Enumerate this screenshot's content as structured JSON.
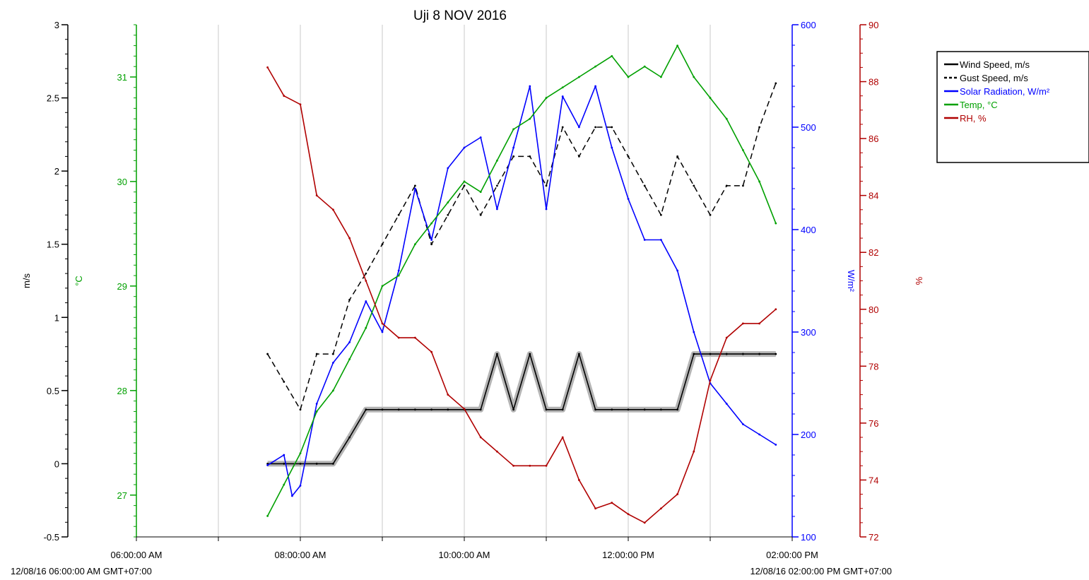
{
  "chart_data": {
    "type": "line",
    "title": "Uji 8 NOV 2016",
    "x_tick_labels": [
      "06:00:00 AM",
      "08:00:00 AM",
      "10:00:00 AM",
      "12:00:00 PM",
      "02:00:00 PM"
    ],
    "x_range_labels": {
      "start": "12/08/16 06:00:00 AM GMT+07:00",
      "end": "12/08/16 02:00:00 PM GMT+07:00"
    },
    "x_range_hours": [
      6,
      14
    ],
    "grid": true,
    "legend_position": "top-right",
    "axes": [
      {
        "id": "wind",
        "label": "m/s",
        "color": "#000000",
        "range": [
          -0.5,
          3
        ],
        "ticks": [
          "-0.5",
          "0",
          "0.5",
          "1",
          "1.5",
          "2",
          "2.5",
          "3"
        ]
      },
      {
        "id": "temp",
        "label": "°C",
        "color": "#00a000",
        "range": [
          26.6,
          31.5
        ],
        "ticks": [
          "27",
          "28",
          "29",
          "30",
          "31"
        ]
      },
      {
        "id": "solar",
        "label": "W/m²",
        "color": "#0000ff",
        "range": [
          100,
          600
        ],
        "ticks": [
          "100",
          "200",
          "300",
          "400",
          "500",
          "600"
        ]
      },
      {
        "id": "rh",
        "label": "%",
        "color": "#b00000",
        "range": [
          72,
          90
        ],
        "ticks": [
          "72",
          "74",
          "76",
          "78",
          "80",
          "82",
          "84",
          "86",
          "88",
          "90"
        ]
      }
    ],
    "series": [
      {
        "name": "Wind Speed, m/s",
        "axis": "wind",
        "color": "#000000",
        "style": "solid",
        "x_hours": [
          7.6,
          7.8,
          8.0,
          8.2,
          8.4,
          8.6,
          8.8,
          9.0,
          9.2,
          9.4,
          9.6,
          9.8,
          10.0,
          10.2,
          10.4,
          10.6,
          10.8,
          11.0,
          11.2,
          11.4,
          11.6,
          11.8,
          12.0,
          12.2,
          12.4,
          12.6,
          12.8,
          13.0,
          13.2,
          13.4,
          13.6,
          13.8
        ],
        "values": [
          0,
          0,
          0,
          0,
          0,
          0.18,
          0.37,
          0.37,
          0.37,
          0.37,
          0.37,
          0.37,
          0.37,
          0.37,
          0.75,
          0.37,
          0.75,
          0.37,
          0.37,
          0.75,
          0.37,
          0.37,
          0.37,
          0.37,
          0.37,
          0.37,
          0.75,
          0.75,
          0.75,
          0.75,
          0.75,
          0.75
        ]
      },
      {
        "name": "Gust Speed, m/s",
        "axis": "wind",
        "color": "#000000",
        "style": "dashed",
        "x_hours": [
          7.6,
          7.8,
          8.0,
          8.2,
          8.4,
          8.6,
          8.8,
          9.0,
          9.2,
          9.4,
          9.6,
          9.8,
          10.0,
          10.2,
          10.4,
          10.6,
          10.8,
          11.0,
          11.2,
          11.4,
          11.6,
          11.8,
          12.0,
          12.2,
          12.4,
          12.6,
          12.8,
          13.0,
          13.2,
          13.4,
          13.6,
          13.8
        ],
        "values": [
          0.75,
          0.56,
          0.37,
          0.75,
          0.75,
          1.12,
          1.3,
          1.5,
          1.7,
          1.9,
          1.5,
          1.7,
          1.9,
          1.7,
          1.9,
          2.1,
          2.1,
          1.9,
          2.3,
          2.1,
          2.3,
          2.3,
          2.1,
          1.9,
          1.7,
          2.1,
          1.9,
          1.7,
          1.9,
          1.9,
          2.3,
          2.6
        ]
      },
      {
        "name": "Solar Radiation, W/m²",
        "axis": "solar",
        "color": "#0000ff",
        "style": "solid",
        "x_hours": [
          7.6,
          7.8,
          7.9,
          8.0,
          8.2,
          8.4,
          8.6,
          8.8,
          9.0,
          9.2,
          9.4,
          9.6,
          9.8,
          10.0,
          10.2,
          10.4,
          10.6,
          10.8,
          11.0,
          11.2,
          11.4,
          11.6,
          11.8,
          12.0,
          12.2,
          12.4,
          12.6,
          12.8,
          13.0,
          13.2,
          13.4,
          13.6,
          13.8
        ],
        "values": [
          170,
          180,
          140,
          150,
          230,
          270,
          290,
          330,
          300,
          360,
          440,
          390,
          460,
          480,
          490,
          420,
          480,
          540,
          420,
          530,
          500,
          540,
          480,
          430,
          390,
          390,
          360,
          300,
          250,
          230,
          210,
          200,
          190
        ]
      },
      {
        "name": "Temp, °C",
        "axis": "temp",
        "color": "#00a000",
        "style": "solid",
        "x_hours": [
          7.6,
          7.8,
          8.0,
          8.2,
          8.4,
          8.6,
          8.8,
          9.0,
          9.2,
          9.4,
          9.6,
          9.8,
          10.0,
          10.2,
          10.4,
          10.6,
          10.8,
          11.0,
          11.2,
          11.4,
          11.6,
          11.8,
          12.0,
          12.2,
          12.4,
          12.6,
          12.8,
          13.0,
          13.2,
          13.4,
          13.6,
          13.8
        ],
        "values": [
          26.8,
          27.1,
          27.4,
          27.8,
          28.0,
          28.3,
          28.6,
          29.0,
          29.1,
          29.4,
          29.6,
          29.8,
          30.0,
          29.9,
          30.2,
          30.5,
          30.6,
          30.8,
          30.9,
          31.0,
          31.1,
          31.2,
          31.0,
          31.1,
          31.0,
          31.3,
          31.0,
          30.8,
          30.6,
          30.3,
          30.0,
          29.6
        ]
      },
      {
        "name": "RH, %",
        "axis": "rh",
        "color": "#b00000",
        "style": "solid",
        "x_hours": [
          7.6,
          7.8,
          8.0,
          8.2,
          8.4,
          8.6,
          8.8,
          9.0,
          9.2,
          9.4,
          9.6,
          9.8,
          10.0,
          10.2,
          10.4,
          10.6,
          10.8,
          11.0,
          11.2,
          11.4,
          11.6,
          11.8,
          12.0,
          12.2,
          12.4,
          12.6,
          12.8,
          13.0,
          13.2,
          13.4,
          13.6,
          13.8
        ],
        "values": [
          88.5,
          87.5,
          87.2,
          84.0,
          83.5,
          82.5,
          81.0,
          79.5,
          79.0,
          79.0,
          78.5,
          77.0,
          76.5,
          75.5,
          75.0,
          74.5,
          74.5,
          74.5,
          75.5,
          74.0,
          73.0,
          73.2,
          72.8,
          72.5,
          73.0,
          73.5,
          75.0,
          77.5,
          79.0,
          79.5,
          79.5,
          80.0
        ]
      }
    ]
  }
}
